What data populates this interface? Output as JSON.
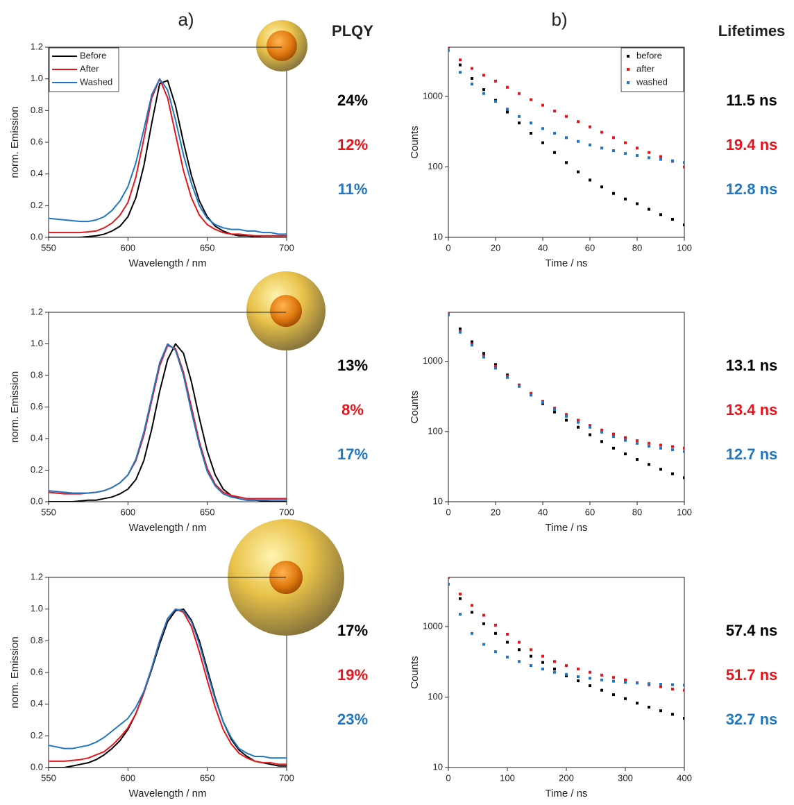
{
  "headings": {
    "a": "a)",
    "b": "b)",
    "plqy": "PLQY",
    "lifetimes": "Lifetimes"
  },
  "chart_data": [
    {
      "type": "line",
      "x_label": "Wavelength / nm",
      "y_label": "norm. Emission",
      "legend": "upper left",
      "xlim": [
        550,
        700
      ],
      "xticks": [
        550,
        600,
        650,
        700
      ],
      "ylim": [
        0,
        1.2
      ],
      "yticks": [
        {
          "value": 0,
          "label": "0.0"
        },
        0.2,
        0.4,
        0.6,
        0.8,
        {
          "value": 1,
          "label": "1.0"
        },
        1.2
      ],
      "x": [
        550,
        555,
        560,
        565,
        570,
        575,
        580,
        585,
        590,
        595,
        600,
        605,
        610,
        615,
        620,
        625,
        630,
        635,
        640,
        645,
        650,
        655,
        660,
        665,
        670,
        675,
        680,
        685,
        690,
        695,
        700
      ],
      "series": [
        {
          "name": "Before",
          "color": "#000000",
          "values": [
            0,
            0,
            0,
            0,
            0,
            0.005,
            0.01,
            0.02,
            0.04,
            0.07,
            0.13,
            0.25,
            0.45,
            0.72,
            0.97,
            0.99,
            0.83,
            0.6,
            0.39,
            0.23,
            0.13,
            0.07,
            0.04,
            0.02,
            0.01,
            0.01,
            0.005,
            0,
            0,
            0,
            0
          ]
        },
        {
          "name": "After",
          "color": "#e8141b",
          "values": [
            0.03,
            0.03,
            0.03,
            0.03,
            0.03,
            0.035,
            0.04,
            0.06,
            0.09,
            0.14,
            0.22,
            0.38,
            0.62,
            0.88,
            1.0,
            0.88,
            0.65,
            0.42,
            0.25,
            0.14,
            0.08,
            0.05,
            0.03,
            0.02,
            0.02,
            0.015,
            0.01,
            0.01,
            0.01,
            0.01,
            0.01
          ]
        },
        {
          "name": "Washed",
          "color": "#1f77c4",
          "values": [
            0.12,
            0.115,
            0.11,
            0.105,
            0.1,
            0.1,
            0.11,
            0.13,
            0.17,
            0.23,
            0.32,
            0.47,
            0.68,
            0.9,
            1.0,
            0.93,
            0.74,
            0.52,
            0.34,
            0.2,
            0.12,
            0.08,
            0.06,
            0.05,
            0.05,
            0.04,
            0.04,
            0.03,
            0.03,
            0.02,
            0.02
          ]
        }
      ],
      "annotations": [
        "24%",
        "12%",
        "11%"
      ]
    },
    {
      "type": "line",
      "x_label": "Wavelength / nm",
      "y_label": "norm. Emission",
      "xlim": [
        550,
        700
      ],
      "xticks": [
        550,
        600,
        650,
        700
      ],
      "ylim": [
        0,
        1.2
      ],
      "yticks": [
        {
          "value": 0,
          "label": "0.0"
        },
        0.2,
        0.4,
        0.6,
        0.8,
        {
          "value": 1,
          "label": "1.0"
        },
        1.2
      ],
      "x": [
        550,
        555,
        560,
        565,
        570,
        575,
        580,
        585,
        590,
        595,
        600,
        605,
        610,
        615,
        620,
        625,
        630,
        635,
        640,
        645,
        650,
        655,
        660,
        665,
        670,
        675,
        680,
        685,
        690,
        695,
        700
      ],
      "series": [
        {
          "color": "#000000",
          "values": [
            0,
            0,
            0,
            0,
            0.005,
            0.01,
            0.01,
            0.02,
            0.03,
            0.05,
            0.08,
            0.14,
            0.26,
            0.46,
            0.7,
            0.9,
            1.0,
            0.94,
            0.76,
            0.53,
            0.32,
            0.17,
            0.08,
            0.04,
            0.02,
            0.01,
            0.01,
            0.005,
            0,
            0,
            0
          ]
        },
        {
          "color": "#e8141b",
          "values": [
            0.06,
            0.055,
            0.05,
            0.05,
            0.05,
            0.055,
            0.06,
            0.07,
            0.09,
            0.12,
            0.17,
            0.26,
            0.42,
            0.64,
            0.86,
            0.99,
            0.97,
            0.82,
            0.6,
            0.38,
            0.21,
            0.11,
            0.06,
            0.04,
            0.03,
            0.02,
            0.02,
            0.02,
            0.02,
            0.02,
            0.02
          ]
        },
        {
          "color": "#1f77c4",
          "values": [
            0.07,
            0.065,
            0.06,
            0.055,
            0.055,
            0.055,
            0.06,
            0.07,
            0.09,
            0.12,
            0.17,
            0.27,
            0.44,
            0.66,
            0.88,
            1.0,
            0.96,
            0.8,
            0.57,
            0.36,
            0.19,
            0.1,
            0.05,
            0.03,
            0.02,
            0.01,
            0.01,
            0.01,
            0.01,
            0.01,
            0.01
          ]
        }
      ],
      "annotations": [
        "13%",
        "8%",
        "17%"
      ]
    },
    {
      "type": "line",
      "x_label": "Wavelength / nm",
      "y_label": "norm. Emission",
      "xlim": [
        550,
        700
      ],
      "xticks": [
        550,
        600,
        650,
        700
      ],
      "ylim": [
        0,
        1.2
      ],
      "yticks": [
        {
          "value": 0,
          "label": "0.0"
        },
        0.2,
        0.4,
        0.6,
        0.8,
        {
          "value": 1,
          "label": "1.0"
        },
        1.2
      ],
      "x": [
        550,
        555,
        560,
        565,
        570,
        575,
        580,
        585,
        590,
        595,
        600,
        605,
        610,
        615,
        620,
        625,
        630,
        635,
        640,
        645,
        650,
        655,
        660,
        665,
        670,
        675,
        680,
        685,
        690,
        695,
        700
      ],
      "series": [
        {
          "color": "#000000",
          "values": [
            0,
            0,
            0,
            0.01,
            0.02,
            0.03,
            0.05,
            0.08,
            0.12,
            0.17,
            0.24,
            0.34,
            0.47,
            0.62,
            0.78,
            0.92,
            0.99,
            1.0,
            0.93,
            0.8,
            0.62,
            0.44,
            0.29,
            0.18,
            0.11,
            0.07,
            0.04,
            0.03,
            0.02,
            0.01,
            0.01
          ]
        },
        {
          "color": "#e8141b",
          "values": [
            0.04,
            0.04,
            0.04,
            0.045,
            0.05,
            0.06,
            0.08,
            0.1,
            0.14,
            0.19,
            0.25,
            0.34,
            0.47,
            0.63,
            0.8,
            0.94,
            1.0,
            0.98,
            0.89,
            0.73,
            0.55,
            0.38,
            0.24,
            0.15,
            0.09,
            0.06,
            0.04,
            0.03,
            0.03,
            0.02,
            0.02
          ]
        },
        {
          "color": "#1f77c4",
          "values": [
            0.14,
            0.13,
            0.12,
            0.12,
            0.13,
            0.14,
            0.16,
            0.19,
            0.23,
            0.27,
            0.31,
            0.38,
            0.48,
            0.63,
            0.8,
            0.94,
            1.0,
            0.99,
            0.92,
            0.78,
            0.6,
            0.43,
            0.29,
            0.19,
            0.12,
            0.09,
            0.07,
            0.07,
            0.06,
            0.06,
            0.06
          ]
        }
      ],
      "annotations": [
        "17%",
        "19%",
        "23%"
      ]
    },
    {
      "type": "scatter",
      "x_label": "Time / ns",
      "y_label": "Counts",
      "legend": "upper right",
      "log_y": true,
      "xlim": [
        0,
        100
      ],
      "xticks": [
        0,
        20,
        40,
        60,
        80,
        100
      ],
      "ylim": [
        10,
        5000
      ],
      "yticks": [
        10,
        100,
        1000
      ],
      "x": [
        0,
        5,
        10,
        15,
        20,
        25,
        30,
        35,
        40,
        45,
        50,
        55,
        60,
        65,
        70,
        75,
        80,
        85,
        90,
        95,
        100
      ],
      "series": [
        {
          "name": "before",
          "color": "#000000",
          "values": [
            5000,
            2800,
            1800,
            1250,
            880,
            600,
            420,
            300,
            220,
            160,
            115,
            85,
            65,
            52,
            42,
            35,
            30,
            25,
            21,
            18,
            15
          ]
        },
        {
          "name": "after",
          "color": "#e8141b",
          "values": [
            5000,
            3300,
            2500,
            2000,
            1650,
            1350,
            1100,
            900,
            750,
            620,
            520,
            440,
            370,
            310,
            260,
            220,
            185,
            160,
            140,
            120,
            100
          ]
        },
        {
          "name": "washed",
          "color": "#1f77c4",
          "values": [
            4500,
            2200,
            1500,
            1100,
            850,
            660,
            520,
            420,
            350,
            300,
            260,
            230,
            205,
            185,
            170,
            155,
            145,
            135,
            128,
            122,
            115
          ]
        }
      ],
      "annotations": [
        "11.5 ns",
        "19.4 ns",
        "12.8 ns"
      ]
    },
    {
      "type": "scatter",
      "x_label": "Time / ns",
      "y_label": "Counts",
      "log_y": true,
      "xlim": [
        0,
        100
      ],
      "xticks": [
        0,
        20,
        40,
        60,
        80,
        100
      ],
      "ylim": [
        10,
        5000
      ],
      "yticks": [
        10,
        100,
        1000
      ],
      "x": [
        0,
        5,
        10,
        15,
        20,
        25,
        30,
        35,
        40,
        45,
        50,
        55,
        60,
        65,
        70,
        75,
        80,
        85,
        90,
        95,
        100
      ],
      "series": [
        {
          "color": "#000000",
          "values": [
            4800,
            2900,
            1900,
            1300,
            900,
            640,
            460,
            340,
            250,
            190,
            145,
            115,
            90,
            72,
            58,
            48,
            40,
            34,
            29,
            25,
            22
          ]
        },
        {
          "color": "#e8141b",
          "values": [
            4800,
            2700,
            1750,
            1200,
            850,
            620,
            460,
            350,
            270,
            215,
            175,
            145,
            122,
            105,
            92,
            82,
            74,
            68,
            64,
            61,
            58
          ]
        },
        {
          "color": "#1f77c4",
          "values": [
            4600,
            2600,
            1700,
            1150,
            800,
            590,
            440,
            330,
            260,
            205,
            165,
            135,
            115,
            98,
            85,
            75,
            68,
            62,
            58,
            55,
            52
          ]
        }
      ],
      "annotations": [
        "13.1 ns",
        "13.4 ns",
        "12.7 ns"
      ]
    },
    {
      "type": "scatter",
      "x_label": "Time / ns",
      "y_label": "Counts",
      "log_y": true,
      "xlim": [
        0,
        400
      ],
      "xticks": [
        0,
        100,
        200,
        300,
        400
      ],
      "ylim": [
        10,
        5000
      ],
      "yticks": [
        10,
        100,
        1000
      ],
      "x": [
        0,
        20,
        40,
        60,
        80,
        100,
        120,
        140,
        160,
        180,
        200,
        220,
        240,
        260,
        280,
        300,
        320,
        340,
        360,
        380,
        400
      ],
      "series": [
        {
          "color": "#000000",
          "values": [
            5000,
            2500,
            1600,
            1100,
            800,
            600,
            470,
            380,
            310,
            250,
            200,
            170,
            145,
            125,
            108,
            95,
            82,
            72,
            64,
            57,
            50
          ]
        },
        {
          "color": "#e8141b",
          "values": [
            5000,
            2900,
            2000,
            1450,
            1050,
            780,
            600,
            470,
            380,
            320,
            280,
            250,
            225,
            205,
            190,
            175,
            160,
            150,
            140,
            130,
            125
          ]
        },
        {
          "color": "#1f77c4",
          "values": [
            4000,
            1500,
            800,
            560,
            440,
            370,
            320,
            280,
            250,
            225,
            210,
            195,
            185,
            175,
            168,
            162,
            158,
            155,
            152,
            150,
            148
          ]
        }
      ],
      "annotations": [
        "57.4 ns",
        "51.7 ns",
        "32.7 ns"
      ]
    }
  ]
}
